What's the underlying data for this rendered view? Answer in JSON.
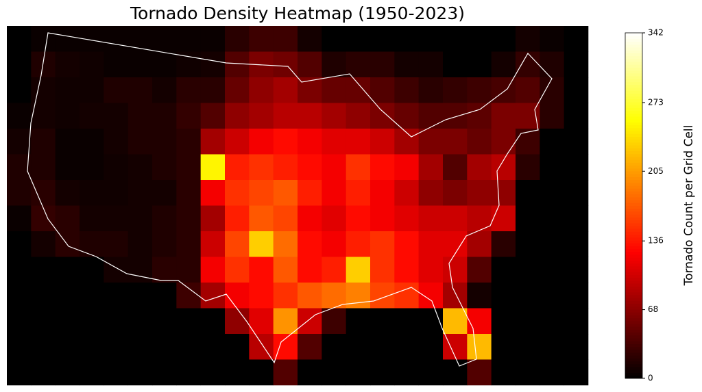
{
  "chart_data": {
    "type": "heatmap",
    "title": "Tornado Density Heatmap (1950-2023)",
    "colorbar_label": "Tornado Count per Grid Cell",
    "colormap": "hot",
    "background": "#000000",
    "border_color": "#ffffff",
    "zlim": [
      0,
      342
    ],
    "zticks": [
      0,
      68,
      136,
      205,
      273,
      342
    ],
    "values": [
      [
        0,
        5,
        5,
        5,
        5,
        5,
        5,
        5,
        5,
        20,
        30,
        30,
        10,
        0,
        0,
        0,
        0,
        0,
        0,
        0,
        0,
        10,
        5,
        0
      ],
      [
        0,
        15,
        10,
        8,
        5,
        5,
        5,
        8,
        10,
        40,
        60,
        55,
        40,
        15,
        20,
        20,
        10,
        10,
        0,
        0,
        10,
        25,
        15,
        0
      ],
      [
        0,
        10,
        8,
        8,
        15,
        15,
        10,
        20,
        20,
        50,
        70,
        80,
        60,
        50,
        50,
        40,
        30,
        20,
        25,
        30,
        35,
        40,
        20,
        0
      ],
      [
        5,
        10,
        8,
        10,
        10,
        15,
        15,
        25,
        40,
        70,
        80,
        90,
        90,
        80,
        70,
        60,
        50,
        40,
        40,
        45,
        60,
        60,
        20,
        0
      ],
      [
        10,
        15,
        5,
        5,
        10,
        15,
        15,
        20,
        80,
        100,
        120,
        130,
        120,
        110,
        110,
        100,
        80,
        60,
        60,
        50,
        60,
        30,
        0,
        0
      ],
      [
        15,
        15,
        5,
        5,
        8,
        10,
        15,
        20,
        250,
        140,
        150,
        140,
        130,
        120,
        150,
        130,
        120,
        80,
        40,
        80,
        90,
        20,
        0,
        0
      ],
      [
        15,
        20,
        10,
        8,
        8,
        10,
        10,
        20,
        120,
        150,
        160,
        170,
        140,
        120,
        140,
        120,
        100,
        70,
        60,
        70,
        70,
        0,
        0,
        0
      ],
      [
        5,
        25,
        20,
        10,
        10,
        10,
        15,
        20,
        80,
        140,
        170,
        160,
        120,
        110,
        130,
        120,
        110,
        100,
        100,
        90,
        100,
        0,
        0,
        0
      ],
      [
        0,
        10,
        20,
        15,
        15,
        10,
        15,
        20,
        100,
        160,
        230,
        180,
        130,
        120,
        140,
        150,
        130,
        110,
        110,
        80,
        20,
        0,
        0,
        0
      ],
      [
        0,
        0,
        0,
        0,
        10,
        10,
        20,
        20,
        120,
        150,
        130,
        170,
        130,
        140,
        230,
        150,
        130,
        110,
        100,
        40,
        0,
        0,
        0,
        0
      ],
      [
        0,
        0,
        0,
        0,
        0,
        0,
        0,
        30,
        80,
        120,
        130,
        150,
        170,
        180,
        190,
        160,
        150,
        120,
        80,
        10,
        0,
        0,
        0,
        0
      ],
      [
        0,
        0,
        0,
        0,
        0,
        0,
        0,
        0,
        0,
        70,
        110,
        200,
        100,
        30,
        0,
        0,
        0,
        0,
        220,
        120,
        0,
        0,
        0,
        0
      ],
      [
        0,
        0,
        0,
        0,
        0,
        0,
        0,
        0,
        0,
        0,
        90,
        130,
        40,
        0,
        0,
        0,
        0,
        0,
        100,
        220,
        0,
        0,
        0,
        0
      ],
      [
        0,
        0,
        0,
        0,
        0,
        0,
        0,
        0,
        0,
        0,
        0,
        40,
        0,
        0,
        0,
        0,
        0,
        0,
        0,
        40,
        0,
        0,
        0,
        0
      ]
    ]
  }
}
